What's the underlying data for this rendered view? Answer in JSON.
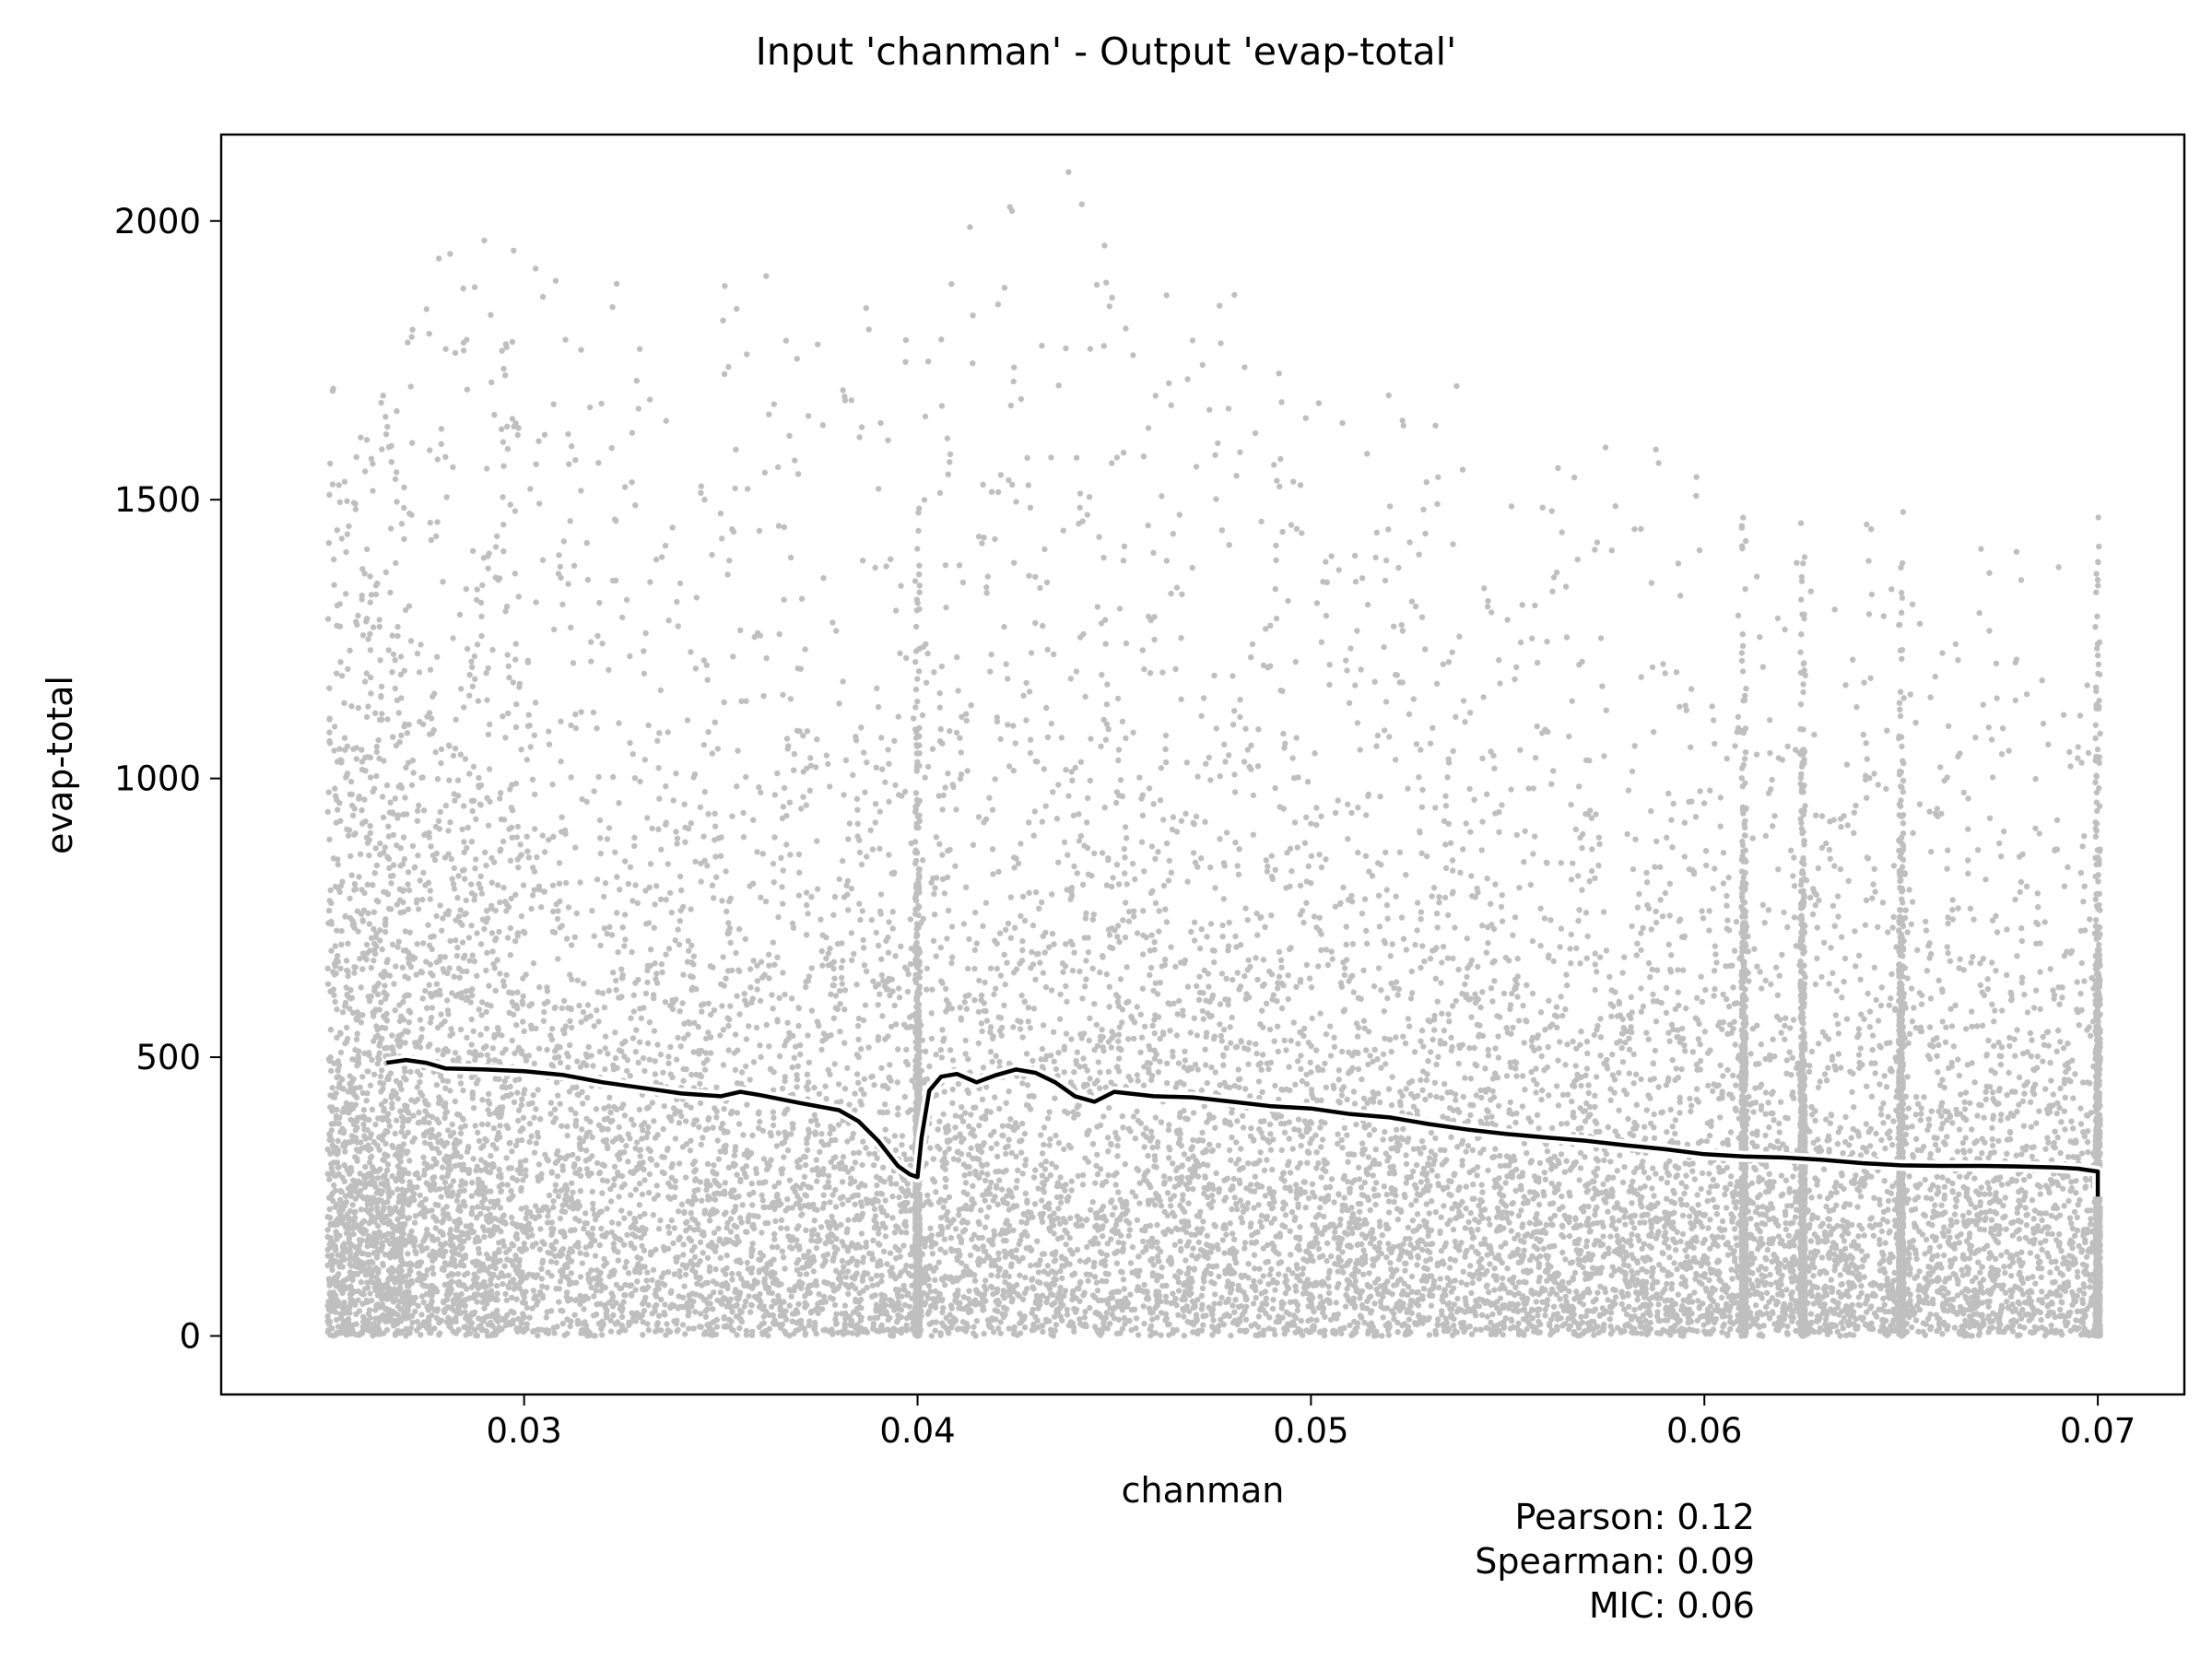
{
  "chart_data": {
    "type": "scatter",
    "title": "Input 'chanman' - Output 'evap-total'",
    "xlabel": "chanman",
    "ylabel": "evap-total",
    "xlim": [
      0.0223,
      0.0722
    ],
    "ylim": [
      -105,
      2155
    ],
    "xticks": [
      0.03,
      0.04,
      0.05,
      0.06,
      0.07
    ],
    "xtick_labels": [
      "0.03",
      "0.04",
      "0.05",
      "0.06",
      "0.07"
    ],
    "yticks": [
      0,
      500,
      1000,
      1500,
      2000
    ],
    "ytick_labels": [
      "0",
      "500",
      "1000",
      "1500",
      "2000"
    ],
    "grid": false,
    "point_color": "#000000",
    "point_opacity": 0.25,
    "trend_color": "#000000",
    "trend_halo_color": "#ffffff",
    "scatter_density": {
      "description_units": "points per x-bin, mean y in data units",
      "bins": [
        {
          "x_range": [
            0.025,
            0.027
          ],
          "y_typical_max": 1550,
          "y_mean": 480
        },
        {
          "x_range": [
            0.027,
            0.03
          ],
          "y_typical_max": 1800,
          "y_mean": 475
        },
        {
          "x_range": [
            0.03,
            0.035
          ],
          "y_typical_max": 1780,
          "y_mean": 445
        },
        {
          "x_range": [
            0.035,
            0.0399
          ],
          "y_typical_max": 1750,
          "y_mean": 400
        },
        {
          "x_range": [
            0.04,
            0.045
          ],
          "y_typical_max": 1900,
          "y_mean": 460
        },
        {
          "x_range": [
            0.045,
            0.05
          ],
          "y_typical_max": 1700,
          "y_mean": 420
        },
        {
          "x_range": [
            0.05,
            0.055
          ],
          "y_typical_max": 1550,
          "y_mean": 385
        },
        {
          "x_range": [
            0.055,
            0.06
          ],
          "y_typical_max": 1450,
          "y_mean": 345
        },
        {
          "x_range": [
            0.06,
            0.065
          ],
          "y_typical_max": 1350,
          "y_mean": 315
        },
        {
          "x_range": [
            0.065,
            0.07
          ],
          "y_typical_max": 1300,
          "y_mean": 305
        }
      ]
    },
    "trend_line": {
      "x": [
        0.0265,
        0.027,
        0.0275,
        0.028,
        0.029,
        0.03,
        0.031,
        0.032,
        0.033,
        0.034,
        0.035,
        0.0355,
        0.036,
        0.037,
        0.038,
        0.0385,
        0.039,
        0.0395,
        0.0398,
        0.04,
        0.0401,
        0.0403,
        0.0406,
        0.041,
        0.0415,
        0.042,
        0.0425,
        0.043,
        0.0435,
        0.044,
        0.0445,
        0.045,
        0.046,
        0.047,
        0.048,
        0.049,
        0.05,
        0.051,
        0.052,
        0.053,
        0.054,
        0.055,
        0.056,
        0.057,
        0.058,
        0.059,
        0.06,
        0.061,
        0.062,
        0.063,
        0.064,
        0.065,
        0.066,
        0.067,
        0.068,
        0.069,
        0.0695,
        0.07,
        0.07
      ],
      "y": [
        490,
        495,
        490,
        480,
        478,
        475,
        468,
        455,
        445,
        435,
        430,
        438,
        432,
        418,
        405,
        385,
        350,
        305,
        290,
        285,
        355,
        440,
        465,
        470,
        455,
        468,
        478,
        472,
        455,
        430,
        420,
        438,
        430,
        428,
        420,
        412,
        408,
        398,
        392,
        380,
        370,
        362,
        356,
        350,
        342,
        335,
        326,
        322,
        320,
        316,
        310,
        306,
        305,
        305,
        304,
        302,
        300,
        295,
        250
      ]
    },
    "annotations": [
      "Pearson: 0.12",
      "Spearman: 0.09",
      "MIC: 0.06"
    ]
  }
}
